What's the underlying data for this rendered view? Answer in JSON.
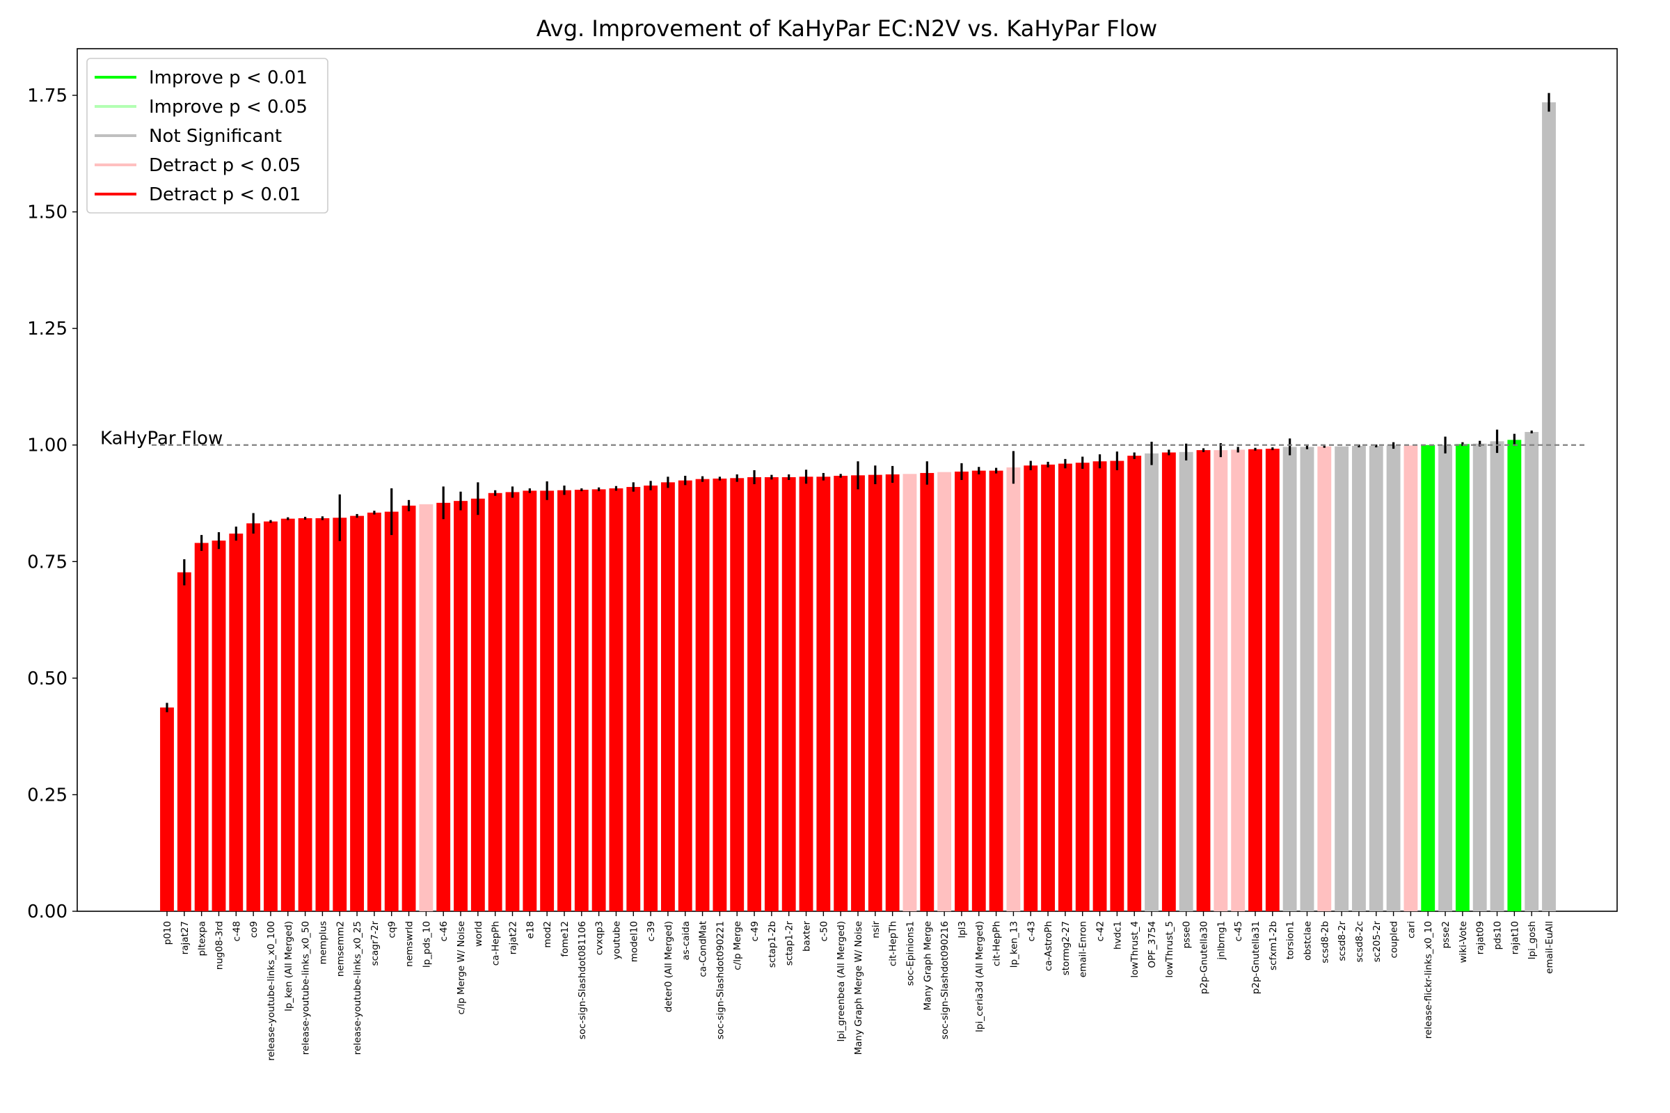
{
  "chart_data": {
    "type": "bar",
    "title": "Avg. Improvement of KaHyPar EC:N2V vs. KaHyPar Flow",
    "xlabel": "",
    "ylabel": "",
    "ylim": [
      0,
      1.85
    ],
    "yticks": [
      0.0,
      0.25,
      0.5,
      0.75,
      1.0,
      1.25,
      1.5,
      1.75
    ],
    "ytick_labels": [
      "0.00",
      "0.25",
      "0.50",
      "0.75",
      "1.00",
      "1.25",
      "1.50",
      "1.75"
    ],
    "grid": false,
    "legend_position": "top-left",
    "legend": [
      {
        "key": "improve_001",
        "label": "Improve p < 0.01",
        "color": "#00ff00"
      },
      {
        "key": "improve_005",
        "label": "Improve p < 0.05",
        "color": "#b3ffb3"
      },
      {
        "key": "not_sig",
        "label": "Not Significant",
        "color": "#bfbfbf"
      },
      {
        "key": "detract_005",
        "label": "Detract p < 0.05",
        "color": "#ffc0c0"
      },
      {
        "key": "detract_001",
        "label": "Detract p < 0.01",
        "color": "#ff0000"
      }
    ],
    "reference_line": {
      "value": 1.0,
      "label": "KaHyPar Flow",
      "color": "#808080"
    },
    "categories": [
      "p010",
      "rajat27",
      "pltexpa",
      "nug08-3rd",
      "c-48",
      "co9",
      "release-youtube-links_x0_100",
      "lp_ken (All Merged)",
      "release-youtube-links_x0_50",
      "memplus",
      "nemsemm2",
      "release-youtube-links_x0_25",
      "scagr7-2r",
      "cq9",
      "nemswrld",
      "lp_pds_10",
      "c-46",
      "c/lp Merge W/ Noise",
      "world",
      "ca-HepPh",
      "rajat22",
      "e18",
      "mod2",
      "fome12",
      "soc-sign-Slashdot081106",
      "cvxqp3",
      "youtube",
      "model10",
      "c-39",
      "deter0 (All Merged)",
      "as-caida",
      "ca-CondMat",
      "soc-sign-Slashdot090221",
      "c/lp Merge",
      "c-49",
      "sctap1-2b",
      "sctap1-2r",
      "baxter",
      "c-50",
      "lpi_greenbea (All Merged)",
      "Many Graph Merge W/ Noise",
      "nsir",
      "cit-HepTh",
      "soc-Epinions1",
      "Many Graph Merge",
      "soc-sign-Slashdot090216",
      "lpl3",
      "lpi_ceria3d (All Merged)",
      "cit-HepPh",
      "lp_ken_13",
      "c-43",
      "ca-AstroPh",
      "stormg2-27",
      "email-Enron",
      "c-42",
      "hvdc1",
      "lowThrust_4",
      "OPF_3754",
      "lowThrust_5",
      "psse0",
      "p2p-Gnutella30",
      "jnlbrng1",
      "c-45",
      "p2p-Gnutella31",
      "scfxm1-2b",
      "torsion1",
      "obstclae",
      "scsd8-2b",
      "scsd8-2r",
      "scsd8-2c",
      "sc205-2r",
      "coupled",
      "cari",
      "release-flickr-links_x0_10",
      "psse2",
      "wiki-Vote",
      "rajat09",
      "pds10",
      "rajat10",
      "lpi_gosh",
      "email-EuAll"
    ],
    "values": [
      0.437,
      0.727,
      0.79,
      0.795,
      0.81,
      0.832,
      0.836,
      0.842,
      0.843,
      0.843,
      0.844,
      0.848,
      0.855,
      0.857,
      0.87,
      0.873,
      0.876,
      0.88,
      0.885,
      0.897,
      0.899,
      0.902,
      0.902,
      0.903,
      0.904,
      0.905,
      0.907,
      0.91,
      0.913,
      0.92,
      0.924,
      0.927,
      0.928,
      0.929,
      0.931,
      0.931,
      0.931,
      0.932,
      0.932,
      0.934,
      0.935,
      0.936,
      0.937,
      0.938,
      0.94,
      0.942,
      0.943,
      0.945,
      0.945,
      0.952,
      0.956,
      0.958,
      0.96,
      0.962,
      0.965,
      0.966,
      0.977,
      0.982,
      0.984,
      0.985,
      0.989,
      0.989,
      0.99,
      0.991,
      0.992,
      0.996,
      0.996,
      0.997,
      0.997,
      0.998,
      0.998,
      0.999,
      0.999,
      1.0,
      1.0,
      1.002,
      1.003,
      1.008,
      1.011,
      1.028,
      1.735
    ],
    "errors": [
      0.01,
      0.028,
      0.017,
      0.018,
      0.015,
      0.022,
      0.003,
      0.003,
      0.003,
      0.004,
      0.05,
      0.004,
      0.004,
      0.05,
      0.012,
      0.0,
      0.035,
      0.02,
      0.035,
      0.006,
      0.012,
      0.005,
      0.02,
      0.01,
      0.003,
      0.004,
      0.005,
      0.01,
      0.01,
      0.012,
      0.01,
      0.006,
      0.004,
      0.008,
      0.015,
      0.005,
      0.006,
      0.015,
      0.008,
      0.004,
      0.03,
      0.02,
      0.018,
      0.0,
      0.025,
      0.0,
      0.018,
      0.008,
      0.006,
      0.035,
      0.01,
      0.006,
      0.01,
      0.013,
      0.015,
      0.02,
      0.007,
      0.025,
      0.006,
      0.018,
      0.004,
      0.015,
      0.006,
      0.003,
      0.003,
      0.018,
      0.005,
      0.003,
      0.0,
      0.003,
      0.003,
      0.007,
      0.0,
      0.0,
      0.018,
      0.004,
      0.006,
      0.025,
      0.013,
      0.003,
      0.02
    ],
    "significance": [
      "detract_001",
      "detract_001",
      "detract_001",
      "detract_001",
      "detract_001",
      "detract_001",
      "detract_001",
      "detract_001",
      "detract_001",
      "detract_001",
      "detract_001",
      "detract_001",
      "detract_001",
      "detract_001",
      "detract_001",
      "detract_005",
      "detract_001",
      "detract_001",
      "detract_001",
      "detract_001",
      "detract_001",
      "detract_001",
      "detract_001",
      "detract_001",
      "detract_001",
      "detract_001",
      "detract_001",
      "detract_001",
      "detract_001",
      "detract_001",
      "detract_001",
      "detract_001",
      "detract_001",
      "detract_001",
      "detract_001",
      "detract_001",
      "detract_001",
      "detract_001",
      "detract_001",
      "detract_001",
      "detract_001",
      "detract_001",
      "detract_001",
      "detract_005",
      "detract_001",
      "detract_005",
      "detract_001",
      "detract_001",
      "detract_001",
      "detract_005",
      "detract_001",
      "detract_001",
      "detract_001",
      "detract_001",
      "detract_001",
      "detract_001",
      "detract_001",
      "not_sig",
      "detract_001",
      "not_sig",
      "detract_001",
      "detract_005",
      "detract_005",
      "detract_001",
      "detract_001",
      "not_sig",
      "not_sig",
      "detract_005",
      "not_sig",
      "not_sig",
      "not_sig",
      "not_sig",
      "detract_005",
      "improve_001",
      "not_sig",
      "improve_001",
      "not_sig",
      "not_sig",
      "improve_001",
      "not_sig",
      "not_sig"
    ]
  }
}
